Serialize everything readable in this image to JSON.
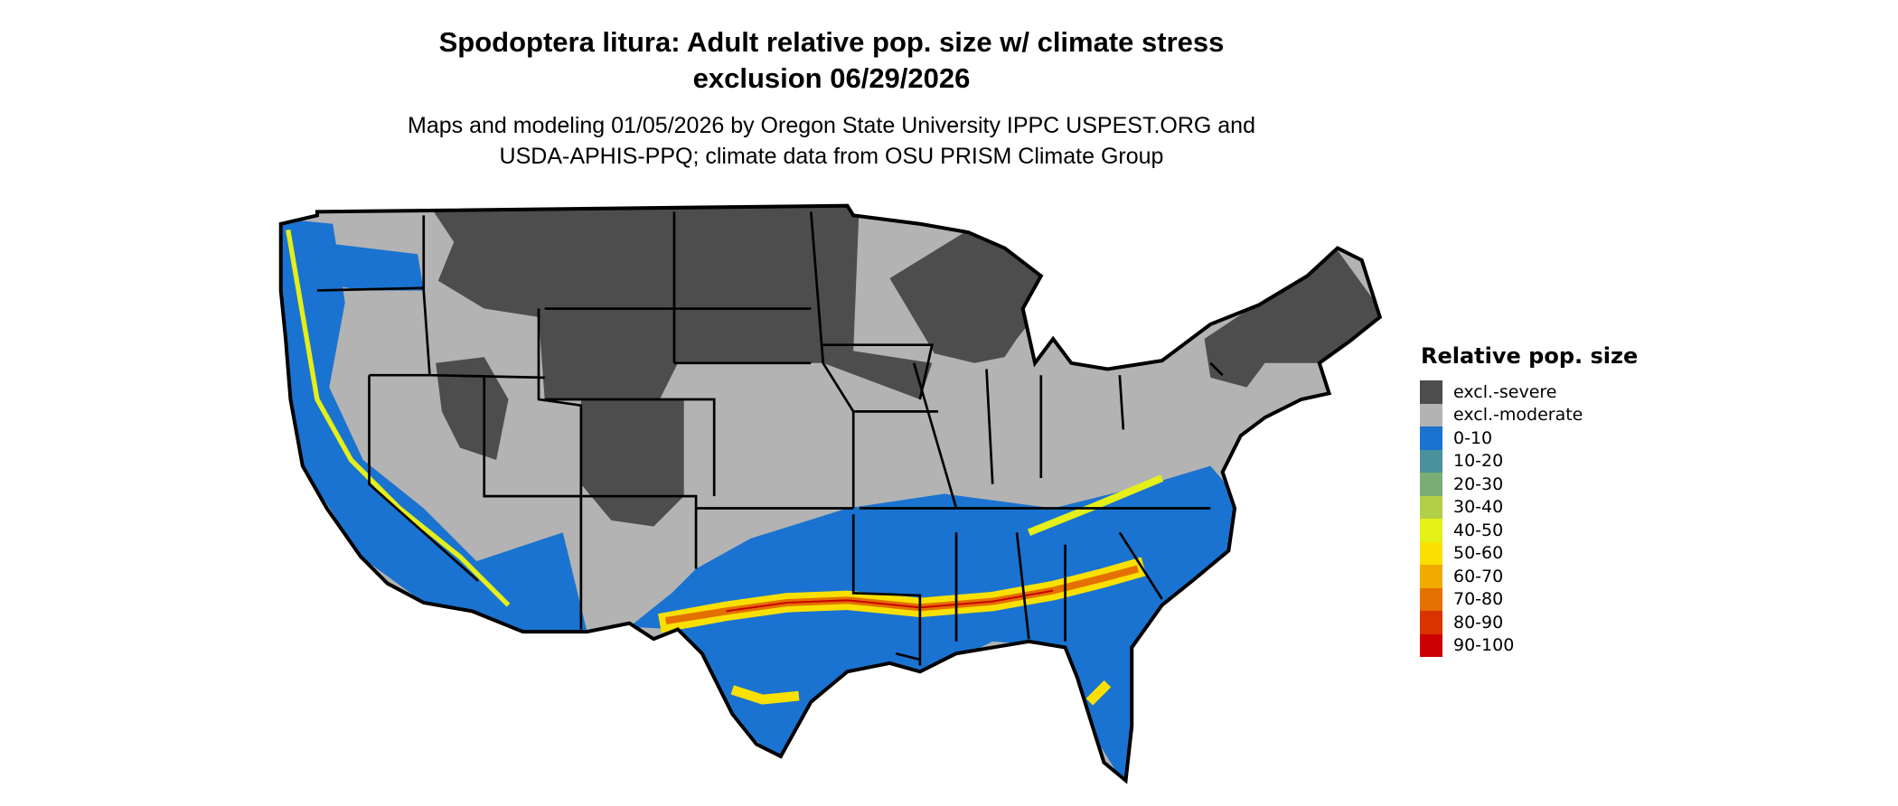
{
  "title": {
    "line1": "Spodoptera litura: Adult relative pop. size w/ climate stress",
    "line2": "exclusion 06/29/2026"
  },
  "subtitle": {
    "line1": "Maps and modeling 01/05/2026 by Oregon State University IPPC USPEST.ORG and",
    "line2": "USDA-APHIS-PPQ; climate data from OSU PRISM Climate Group"
  },
  "legend": {
    "title": "Relative pop. size",
    "items": [
      {
        "label": "excl.-severe",
        "color": "#4d4d4d"
      },
      {
        "label": "excl.-moderate",
        "color": "#b3b3b3"
      },
      {
        "label": "0-10",
        "color": "#1a73d0"
      },
      {
        "label": "10-20",
        "color": "#4a919c"
      },
      {
        "label": "20-30",
        "color": "#7aad75"
      },
      {
        "label": "30-40",
        "color": "#b2cf48"
      },
      {
        "label": "40-50",
        "color": "#e5ef18"
      },
      {
        "label": "50-60",
        "color": "#f9e000"
      },
      {
        "label": "60-70",
        "color": "#f0aa00"
      },
      {
        "label": "70-80",
        "color": "#e37000"
      },
      {
        "label": "80-90",
        "color": "#d93400"
      },
      {
        "label": "90-100",
        "color": "#cc0000"
      }
    ]
  }
}
